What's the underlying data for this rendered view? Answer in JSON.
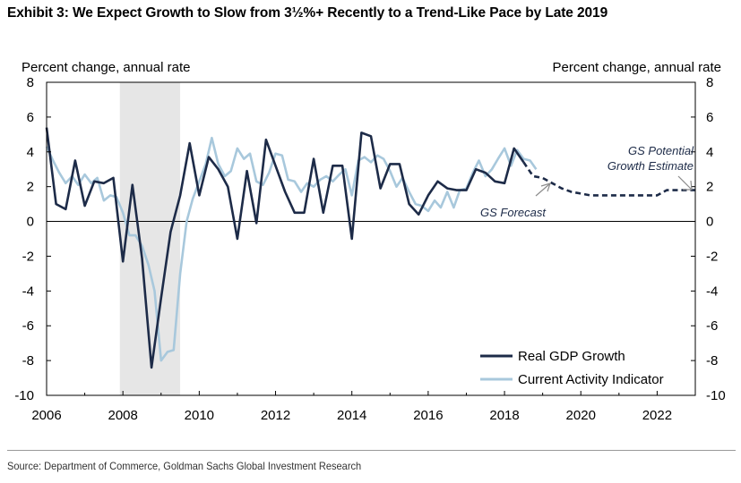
{
  "title": "Exhibit 3: We Expect Growth to Slow from 3½%+ Recently to a Trend-Like Pace by Late 2019",
  "source": "Source: Department of Commerce, Goldman Sachs Global Investment Research",
  "colors": {
    "gdp": "#1d2b48",
    "cai": "#a8c8dc",
    "forecast": "#1d2b48",
    "recession": "#e6e6e6",
    "axis": "#000000",
    "annotation": "#1d2b48",
    "arrow": "#8c8c8c"
  },
  "chart_data": {
    "type": "line",
    "title": "Exhibit 3: We Expect Growth to Slow from 3½%+ Recently to a Trend-Like Pace by Late 2019",
    "ylabel_left": "Percent change, annual rate",
    "ylabel_right": "Percent change, annual rate",
    "xlabel": "",
    "xlim": [
      2006,
      2023
    ],
    "ylim": [
      -10,
      8
    ],
    "x_ticks": [
      "2006",
      "2008",
      "2010",
      "2012",
      "2014",
      "2016",
      "2018",
      "2020",
      "2022"
    ],
    "y_ticks": [
      "8",
      "6",
      "4",
      "2",
      "0",
      "-2",
      "-4",
      "-6",
      "-8",
      "-10"
    ],
    "recession": {
      "start": 2007.92,
      "end": 2009.5
    },
    "legend": {
      "position": "bottom-right",
      "items": [
        {
          "label": "Real GDP Growth",
          "series": "gdp"
        },
        {
          "label": "Current Activity Indicator",
          "series": "cai"
        }
      ]
    },
    "annotations": [
      {
        "text": "GS Forecast",
        "x": 2019.2,
        "y": 2.3
      },
      {
        "text": "GS Potential",
        "x": 2022.5,
        "y": 3.8
      },
      {
        "text": "Growth Estimate",
        "x": 2022.5,
        "y": 1.7
      }
    ],
    "series": [
      {
        "name": "Real GDP Growth",
        "key": "gdp",
        "x": [
          2006.0,
          2006.25,
          2006.5,
          2006.75,
          2007.0,
          2007.25,
          2007.5,
          2007.75,
          2008.0,
          2008.25,
          2008.5,
          2008.75,
          2009.0,
          2009.25,
          2009.5,
          2009.75,
          2010.0,
          2010.25,
          2010.5,
          2010.75,
          2011.0,
          2011.25,
          2011.5,
          2011.75,
          2012.0,
          2012.25,
          2012.5,
          2012.75,
          2013.0,
          2013.25,
          2013.5,
          2013.75,
          2014.0,
          2014.25,
          2014.5,
          2014.75,
          2015.0,
          2015.25,
          2015.5,
          2015.75,
          2016.0,
          2016.25,
          2016.5,
          2016.75,
          2017.0,
          2017.25,
          2017.5,
          2017.75,
          2018.0,
          2018.25,
          2018.5
        ],
        "values": [
          5.4,
          1.0,
          0.7,
          3.5,
          0.9,
          2.3,
          2.2,
          2.5,
          -2.3,
          2.1,
          -2.1,
          -8.4,
          -4.4,
          -0.6,
          1.5,
          4.5,
          1.5,
          3.7,
          3.0,
          2.0,
          -1.0,
          2.9,
          -0.1,
          4.7,
          3.2,
          1.7,
          0.5,
          0.5,
          3.6,
          0.5,
          3.2,
          3.2,
          -1.0,
          5.1,
          4.9,
          1.9,
          3.3,
          3.3,
          1.0,
          0.4,
          1.5,
          2.3,
          1.9,
          1.8,
          1.8,
          3.0,
          2.8,
          2.3,
          2.2,
          4.2,
          3.4
        ]
      },
      {
        "name": "Current Activity Indicator",
        "key": "cai",
        "x": [
          2006.0,
          2006.17,
          2006.33,
          2006.5,
          2006.67,
          2006.83,
          2007.0,
          2007.17,
          2007.33,
          2007.5,
          2007.67,
          2007.83,
          2008.0,
          2008.17,
          2008.33,
          2008.5,
          2008.67,
          2008.83,
          2009.0,
          2009.17,
          2009.33,
          2009.5,
          2009.67,
          2009.83,
          2010.0,
          2010.17,
          2010.33,
          2010.5,
          2010.67,
          2010.83,
          2011.0,
          2011.17,
          2011.33,
          2011.5,
          2011.67,
          2011.83,
          2012.0,
          2012.17,
          2012.33,
          2012.5,
          2012.67,
          2012.83,
          2013.0,
          2013.17,
          2013.33,
          2013.5,
          2013.67,
          2013.83,
          2014.0,
          2014.17,
          2014.33,
          2014.5,
          2014.67,
          2014.83,
          2015.0,
          2015.17,
          2015.33,
          2015.5,
          2015.67,
          2015.83,
          2016.0,
          2016.17,
          2016.33,
          2016.5,
          2016.67,
          2016.83,
          2017.0,
          2017.17,
          2017.33,
          2017.5,
          2017.67,
          2017.83,
          2018.0,
          2018.17,
          2018.33,
          2018.5,
          2018.67,
          2018.83
        ],
        "values": [
          4.3,
          3.5,
          2.8,
          2.2,
          2.6,
          2.1,
          2.7,
          2.2,
          2.5,
          1.2,
          1.5,
          1.4,
          0.5,
          -0.8,
          -0.8,
          -1.4,
          -2.5,
          -4.0,
          -8.0,
          -7.5,
          -7.4,
          -3.0,
          0.0,
          1.3,
          2.3,
          3.3,
          4.8,
          3.3,
          2.6,
          2.9,
          4.2,
          3.6,
          3.9,
          2.3,
          2.1,
          2.8,
          3.9,
          3.8,
          2.4,
          2.3,
          1.7,
          2.2,
          2.0,
          2.4,
          2.6,
          2.3,
          2.7,
          3.0,
          1.5,
          3.5,
          3.7,
          3.4,
          3.8,
          3.6,
          2.9,
          2.0,
          2.5,
          1.7,
          1.0,
          0.9,
          0.6,
          1.2,
          0.8,
          1.7,
          0.8,
          1.8,
          1.9,
          2.8,
          3.5,
          2.6,
          3.0,
          3.6,
          4.2,
          3.2,
          4.1,
          3.6,
          3.5,
          3.0
        ]
      },
      {
        "name": "GS Forecast",
        "key": "forecast",
        "style": "dashed",
        "x": [
          2018.5,
          2018.75,
          2019.0,
          2019.25,
          2019.5,
          2019.75,
          2020.0,
          2020.25,
          2020.5,
          2020.75,
          2021.0,
          2021.25,
          2021.5,
          2021.75,
          2022.0,
          2022.25,
          2022.5,
          2022.75,
          2023.0
        ],
        "values": [
          3.4,
          2.6,
          2.5,
          2.2,
          1.9,
          1.7,
          1.6,
          1.5,
          1.5,
          1.5,
          1.5,
          1.5,
          1.5,
          1.5,
          1.5,
          1.8,
          1.8,
          1.8,
          1.8
        ]
      }
    ]
  }
}
